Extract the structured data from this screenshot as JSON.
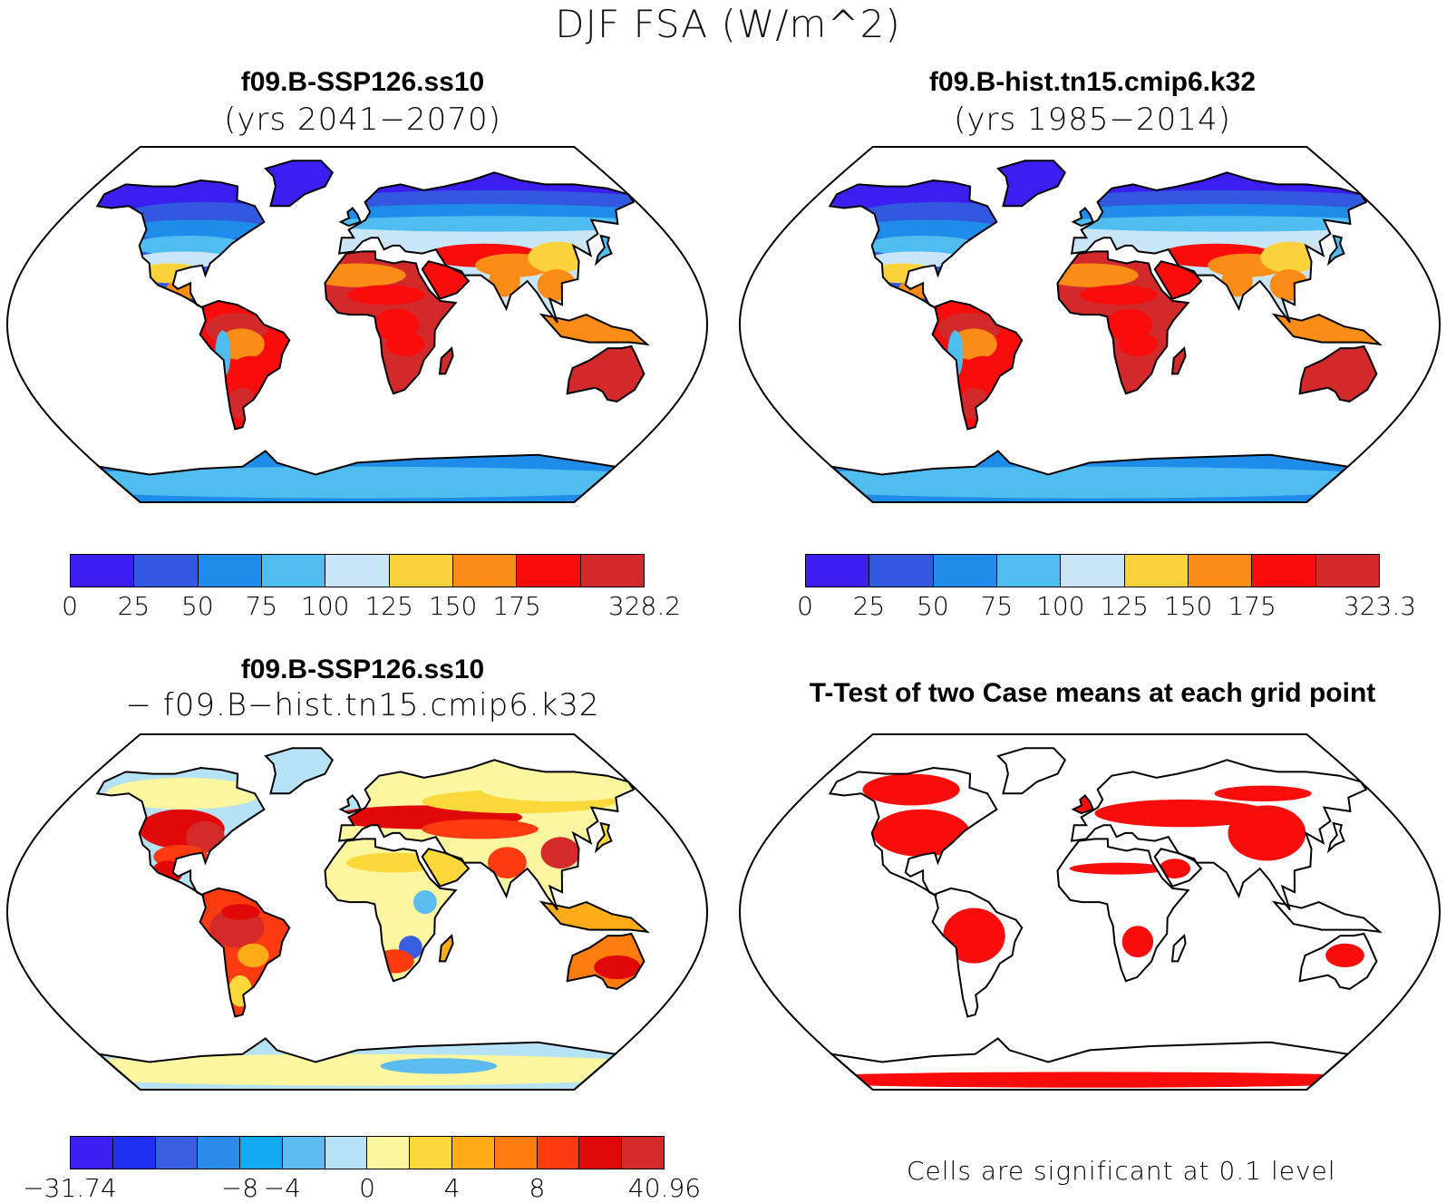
{
  "figure": {
    "title": "DJF FSA (W/m^2)"
  },
  "panels": [
    {
      "id": "future",
      "title": "f09.B-SSP126.ss10",
      "subtitle": "(yrs 2041−2070)",
      "colorbar": {
        "colors": [
          "#3a1ff0",
          "#3358e0",
          "#1e8ce8",
          "#50bdf0",
          "#c8e6f8",
          "#fcd23a",
          "#fb8c16",
          "#f80c0c",
          "#d22a2a"
        ],
        "ticks": [
          "0",
          "25",
          "50",
          "75",
          "100",
          "125",
          "150",
          "175",
          "328.2"
        ]
      }
    },
    {
      "id": "historical",
      "title": "f09.B-hist.tn15.cmip6.k32",
      "subtitle": "(yrs 1985−2014)",
      "colorbar": {
        "colors": [
          "#3a1ff0",
          "#3358e0",
          "#1e8ce8",
          "#50bdf0",
          "#c8e6f8",
          "#fcd23a",
          "#fb8c16",
          "#f80c0c",
          "#d22a2a"
        ],
        "ticks": [
          "0",
          "25",
          "50",
          "75",
          "100",
          "125",
          "150",
          "175",
          "323.3"
        ]
      }
    },
    {
      "id": "difference",
      "title": "f09.B-SSP126.ss10",
      "subtitle": "− f09.B−hist.tn15.cmip6.k32",
      "colorbar": {
        "colors": [
          "#3a1ff0",
          "#2030f0",
          "#3a5ee0",
          "#2a8ce8",
          "#10aaf0",
          "#5cbcf0",
          "#b6e2f6",
          "#fcf6a0",
          "#fcd83a",
          "#fcac16",
          "#fc7c10",
          "#fc3c10",
          "#e00808",
          "#d42a2a"
        ],
        "ticks": [
          "−31.74",
          "−8",
          "−4",
          "0",
          "4",
          "8",
          "40.96"
        ]
      }
    },
    {
      "id": "ttest",
      "title": "T-Test of two Case means at each grid point",
      "note": "Cells are significant at 0.1 level"
    }
  ]
}
